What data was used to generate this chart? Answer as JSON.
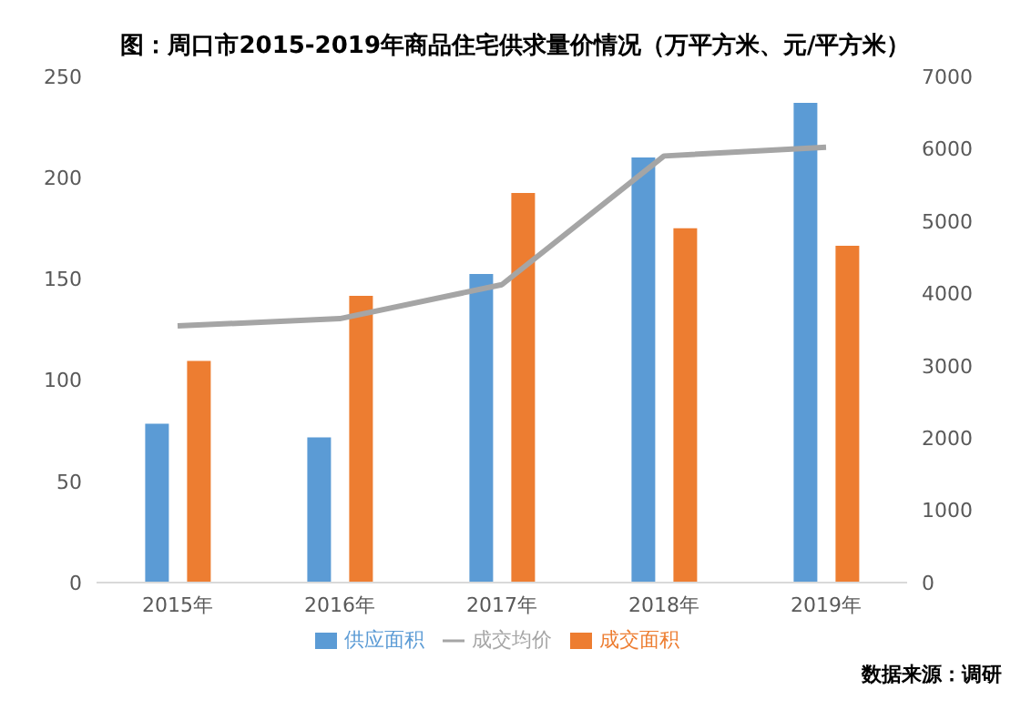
{
  "chart_data": {
    "type": "bar",
    "title": "图：周口市2015-2019年商品住宅供求量价情况（万平方米、元/平方米）",
    "categories": [
      "2015年",
      "2016年",
      "2017年",
      "2018年",
      "2019年"
    ],
    "series": [
      {
        "name": "供应面积",
        "color": "#5b9bd5",
        "values": [
          78.5,
          71.7,
          152.4,
          210,
          237
        ]
      },
      {
        "name": "成交面积",
        "color": "#ed7d31",
        "values": [
          109.5,
          141.6,
          192.4,
          175,
          166.4
        ]
      },
      {
        "name": "成交均价",
        "type": "line",
        "axis": "y2",
        "color": "#a5a5a5",
        "values": [
          3550,
          3650,
          4120,
          5900,
          6020
        ]
      }
    ],
    "ylim": [
      0,
      250
    ],
    "yticks": [
      0,
      50,
      100,
      150,
      200,
      250
    ],
    "y2lim": [
      0,
      7000
    ],
    "y2ticks": [
      0,
      1000,
      2000,
      3000,
      4000,
      5000,
      6000,
      7000
    ],
    "grid": false,
    "legend": "bottom",
    "marker": "none",
    "annotations": [
      "数据来源：调研"
    ]
  }
}
